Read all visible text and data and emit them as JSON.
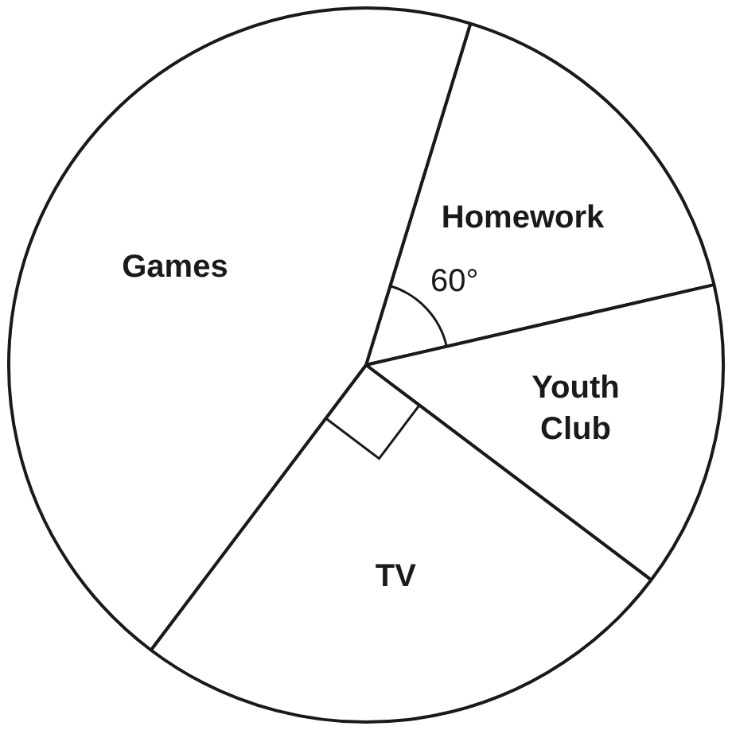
{
  "chart_data": {
    "type": "pie",
    "categories": [
      "Homework",
      "Youth Club",
      "TV",
      "Games"
    ],
    "values": [
      16.67,
      13.89,
      25,
      44.44
    ],
    "colors": [
      "#ffffff",
      "#ffffff",
      "#ffffff",
      "#ffffff"
    ],
    "annotations": [
      {
        "text": "60°",
        "x": "Homework"
      }
    ],
    "legend": false
  }
}
